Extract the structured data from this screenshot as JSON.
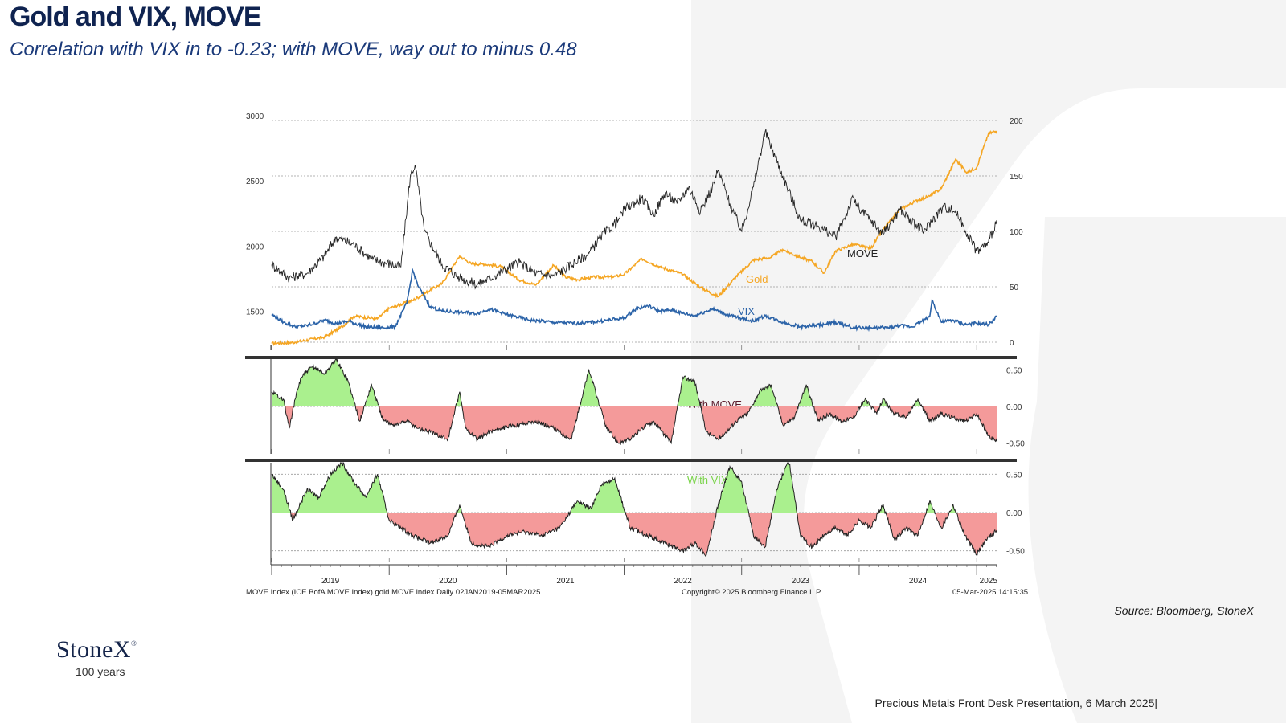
{
  "title": "Gold and VIX, MOVE",
  "subtitle": "Correlation with VIX in to -0.23; with MOVE, way out to minus 0.48",
  "source": "Source: Bloomberg, StoneX",
  "footer": "Precious Metals Front Desk Presentation, 6 March 2025|",
  "logo": {
    "name": "StoneX",
    "mark": "®",
    "tagline": "100 years"
  },
  "colors": {
    "gold": "#f5a623",
    "vix": "#2b63a8",
    "move": "#222222",
    "positive": "#aaf08e",
    "negative": "#f49a9a",
    "title": "#0f2350"
  },
  "chart_data": [
    {
      "type": "line",
      "title": "",
      "x_range": [
        2019.0,
        2025.17
      ],
      "left_axis": {
        "ticks": [
          1500,
          2000,
          2500,
          3000
        ],
        "range": [
          1300,
          3000
        ]
      },
      "right_axis": {
        "ticks": [
          0,
          50,
          100,
          150,
          200
        ],
        "range": [
          0,
          200
        ]
      },
      "series": [
        {
          "name": "Gold",
          "axis": "left",
          "label": "Gold",
          "color": "#f5a623",
          "x": [
            2019.0,
            2019.2,
            2019.45,
            2019.6,
            2019.7,
            2019.9,
            2020.0,
            2020.2,
            2020.35,
            2020.45,
            2020.6,
            2020.7,
            2020.8,
            2020.95,
            2021.1,
            2021.25,
            2021.4,
            2021.5,
            2021.6,
            2021.75,
            2021.9,
            2022.0,
            2022.15,
            2022.3,
            2022.5,
            2022.65,
            2022.8,
            2022.95,
            2023.1,
            2023.25,
            2023.35,
            2023.5,
            2023.6,
            2023.7,
            2023.8,
            2023.95,
            2024.1,
            2024.2,
            2024.35,
            2024.5,
            2024.6,
            2024.7,
            2024.82,
            2024.92,
            2025.0,
            2025.1,
            2025.17
          ],
          "values": [
            1290,
            1300,
            1340,
            1420,
            1500,
            1480,
            1560,
            1620,
            1700,
            1750,
            1960,
            1900,
            1900,
            1880,
            1780,
            1740,
            1890,
            1800,
            1780,
            1800,
            1800,
            1820,
            1940,
            1880,
            1820,
            1720,
            1650,
            1800,
            1930,
            1950,
            2010,
            1950,
            1920,
            1830,
            2000,
            2050,
            2020,
            2160,
            2320,
            2390,
            2420,
            2480,
            2700,
            2600,
            2640,
            2900,
            2920
          ]
        },
        {
          "name": "MOVE",
          "axis": "right",
          "label": "MOVE",
          "color": "#222222",
          "x": [
            2019.0,
            2019.15,
            2019.3,
            2019.45,
            2019.55,
            2019.7,
            2019.85,
            2019.95,
            2020.1,
            2020.18,
            2020.22,
            2020.3,
            2020.45,
            2020.6,
            2020.75,
            2020.9,
            2021.1,
            2021.25,
            2021.4,
            2021.55,
            2021.7,
            2021.8,
            2021.95,
            2022.0,
            2022.15,
            2022.25,
            2022.35,
            2022.45,
            2022.55,
            2022.65,
            2022.75,
            2022.8,
            2022.9,
            2023.0,
            2023.1,
            2023.2,
            2023.35,
            2023.5,
            2023.65,
            2023.8,
            2023.95,
            2024.0,
            2024.1,
            2024.2,
            2024.35,
            2024.45,
            2024.55,
            2024.62,
            2024.72,
            2024.82,
            2024.92,
            2025.0,
            2025.1,
            2025.17
          ],
          "values": [
            70,
            58,
            62,
            78,
            95,
            88,
            75,
            72,
            68,
            150,
            160,
            100,
            70,
            58,
            52,
            60,
            72,
            62,
            60,
            70,
            80,
            95,
            110,
            120,
            130,
            115,
            135,
            125,
            140,
            118,
            140,
            155,
            125,
            100,
            140,
            190,
            150,
            110,
            105,
            95,
            130,
            120,
            110,
            98,
            120,
            108,
            100,
            110,
            122,
            118,
            98,
            82,
            90,
            110
          ]
        },
        {
          "name": "VIX",
          "axis": "right",
          "label": "VIX",
          "color": "#2b63a8",
          "x": [
            2019.0,
            2019.1,
            2019.2,
            2019.3,
            2019.4,
            2019.45,
            2019.55,
            2019.65,
            2019.8,
            2019.95,
            2020.05,
            2020.15,
            2020.2,
            2020.25,
            2020.35,
            2020.45,
            2020.6,
            2020.75,
            2020.85,
            2021.0,
            2021.2,
            2021.4,
            2021.6,
            2021.8,
            2022.0,
            2022.1,
            2022.2,
            2022.3,
            2022.4,
            2022.5,
            2022.6,
            2022.75,
            2022.9,
            2023.1,
            2023.2,
            2023.35,
            2023.5,
            2023.7,
            2023.8,
            2023.95,
            2024.1,
            2024.25,
            2024.35,
            2024.45,
            2024.6,
            2024.62,
            2024.7,
            2024.8,
            2024.9,
            2025.0,
            2025.1,
            2025.17
          ],
          "values": [
            25,
            18,
            14,
            15,
            18,
            20,
            17,
            19,
            14,
            13,
            14,
            35,
            65,
            50,
            32,
            28,
            27,
            26,
            30,
            25,
            20,
            18,
            17,
            19,
            22,
            30,
            33,
            28,
            29,
            26,
            24,
            30,
            24,
            19,
            24,
            18,
            14,
            16,
            18,
            13,
            13,
            13,
            15,
            14,
            23,
            38,
            18,
            20,
            16,
            17,
            16,
            23
          ]
        }
      ],
      "annotations": [
        "MOVE",
        "Gold",
        "VIX"
      ]
    },
    {
      "type": "area",
      "title": "With MOVE",
      "x_range": [
        2019.0,
        2025.17
      ],
      "y_axis": {
        "ticks": [
          0.5,
          0.0,
          -0.5
        ],
        "tick_labels": [
          "0.50",
          "0.00",
          "-0.50"
        ],
        "range": [
          -0.65,
          0.65
        ]
      },
      "series": [
        {
          "name": "With MOVE",
          "x": [
            2019.0,
            2019.1,
            2019.15,
            2019.2,
            2019.25,
            2019.35,
            2019.45,
            2019.55,
            2019.65,
            2019.75,
            2019.85,
            2019.95,
            2020.05,
            2020.15,
            2020.25,
            2020.35,
            2020.5,
            2020.6,
            2020.65,
            2020.75,
            2020.85,
            2020.95,
            2021.1,
            2021.25,
            2021.4,
            2021.55,
            2021.7,
            2021.85,
            2021.95,
            2022.05,
            2022.15,
            2022.25,
            2022.4,
            2022.5,
            2022.6,
            2022.7,
            2022.8,
            2022.9,
            2022.95,
            2023.05,
            2023.15,
            2023.25,
            2023.35,
            2023.45,
            2023.55,
            2023.65,
            2023.75,
            2023.85,
            2023.95,
            2024.05,
            2024.15,
            2024.2,
            2024.3,
            2024.4,
            2024.5,
            2024.6,
            2024.7,
            2024.8,
            2024.9,
            2025.0,
            2025.1,
            2025.17
          ],
          "values": [
            0.2,
            0.1,
            -0.3,
            0.1,
            0.4,
            0.55,
            0.45,
            0.65,
            0.35,
            -0.2,
            0.3,
            -0.2,
            -0.25,
            -0.2,
            -0.3,
            -0.35,
            -0.45,
            0.2,
            -0.3,
            -0.45,
            -0.35,
            -0.3,
            -0.25,
            -0.2,
            -0.3,
            -0.45,
            0.5,
            -0.3,
            -0.5,
            -0.45,
            -0.3,
            -0.2,
            -0.5,
            0.4,
            0.35,
            -0.35,
            -0.45,
            -0.3,
            -0.2,
            -0.1,
            0.2,
            0.3,
            -0.25,
            -0.15,
            0.3,
            -0.2,
            -0.1,
            -0.2,
            -0.15,
            0.1,
            -0.1,
            0.1,
            -0.1,
            -0.15,
            0.1,
            -0.2,
            -0.1,
            -0.15,
            -0.2,
            -0.1,
            -0.4,
            -0.48
          ]
        }
      ]
    },
    {
      "type": "area",
      "title": "With VIX",
      "x_range": [
        2019.0,
        2025.17
      ],
      "x_tick_labels": [
        "2019",
        "2020",
        "2021",
        "2022",
        "2023",
        "2024",
        "2025"
      ],
      "y_axis": {
        "ticks": [
          0.5,
          0.0,
          -0.5
        ],
        "tick_labels": [
          "0.50",
          "0.00",
          "-0.50"
        ],
        "range": [
          -0.65,
          0.65
        ]
      },
      "series": [
        {
          "name": "With VIX",
          "x": [
            2019.0,
            2019.1,
            2019.18,
            2019.3,
            2019.4,
            2019.5,
            2019.6,
            2019.7,
            2019.8,
            2019.9,
            2020.0,
            2020.1,
            2020.2,
            2020.35,
            2020.5,
            2020.6,
            2020.7,
            2020.85,
            2021.0,
            2021.15,
            2021.3,
            2021.45,
            2021.6,
            2021.72,
            2021.8,
            2021.92,
            2022.05,
            2022.2,
            2022.35,
            2022.5,
            2022.6,
            2022.7,
            2022.8,
            2022.9,
            2023.0,
            2023.1,
            2023.2,
            2023.3,
            2023.4,
            2023.5,
            2023.6,
            2023.7,
            2023.8,
            2023.9,
            2024.0,
            2024.1,
            2024.2,
            2024.3,
            2024.4,
            2024.5,
            2024.6,
            2024.7,
            2024.8,
            2024.9,
            2025.0,
            2025.08,
            2025.17
          ],
          "values": [
            0.5,
            0.3,
            -0.1,
            0.3,
            0.2,
            0.5,
            0.65,
            0.4,
            0.2,
            0.5,
            -0.1,
            -0.2,
            -0.3,
            -0.4,
            -0.3,
            0.1,
            -0.4,
            -0.45,
            -0.3,
            -0.25,
            -0.3,
            -0.2,
            0.15,
            0.05,
            0.35,
            0.45,
            -0.2,
            -0.3,
            -0.4,
            -0.5,
            -0.4,
            -0.55,
            0.1,
            0.6,
            0.4,
            -0.3,
            -0.45,
            0.3,
            0.7,
            -0.3,
            -0.45,
            -0.3,
            -0.2,
            -0.3,
            -0.1,
            -0.2,
            0.1,
            -0.35,
            -0.2,
            -0.3,
            0.15,
            -0.2,
            0.1,
            -0.3,
            -0.55,
            -0.35,
            -0.23
          ]
        }
      ]
    }
  ],
  "chart_footer": {
    "left": "MOVE Index (ICE BofA MOVE Index) gold MOVE index  Daily 02JAN2019-05MAR2025",
    "center": "Copyright© 2025 Bloomberg Finance L.P.",
    "right": "05-Mar-2025 14:15:35"
  }
}
